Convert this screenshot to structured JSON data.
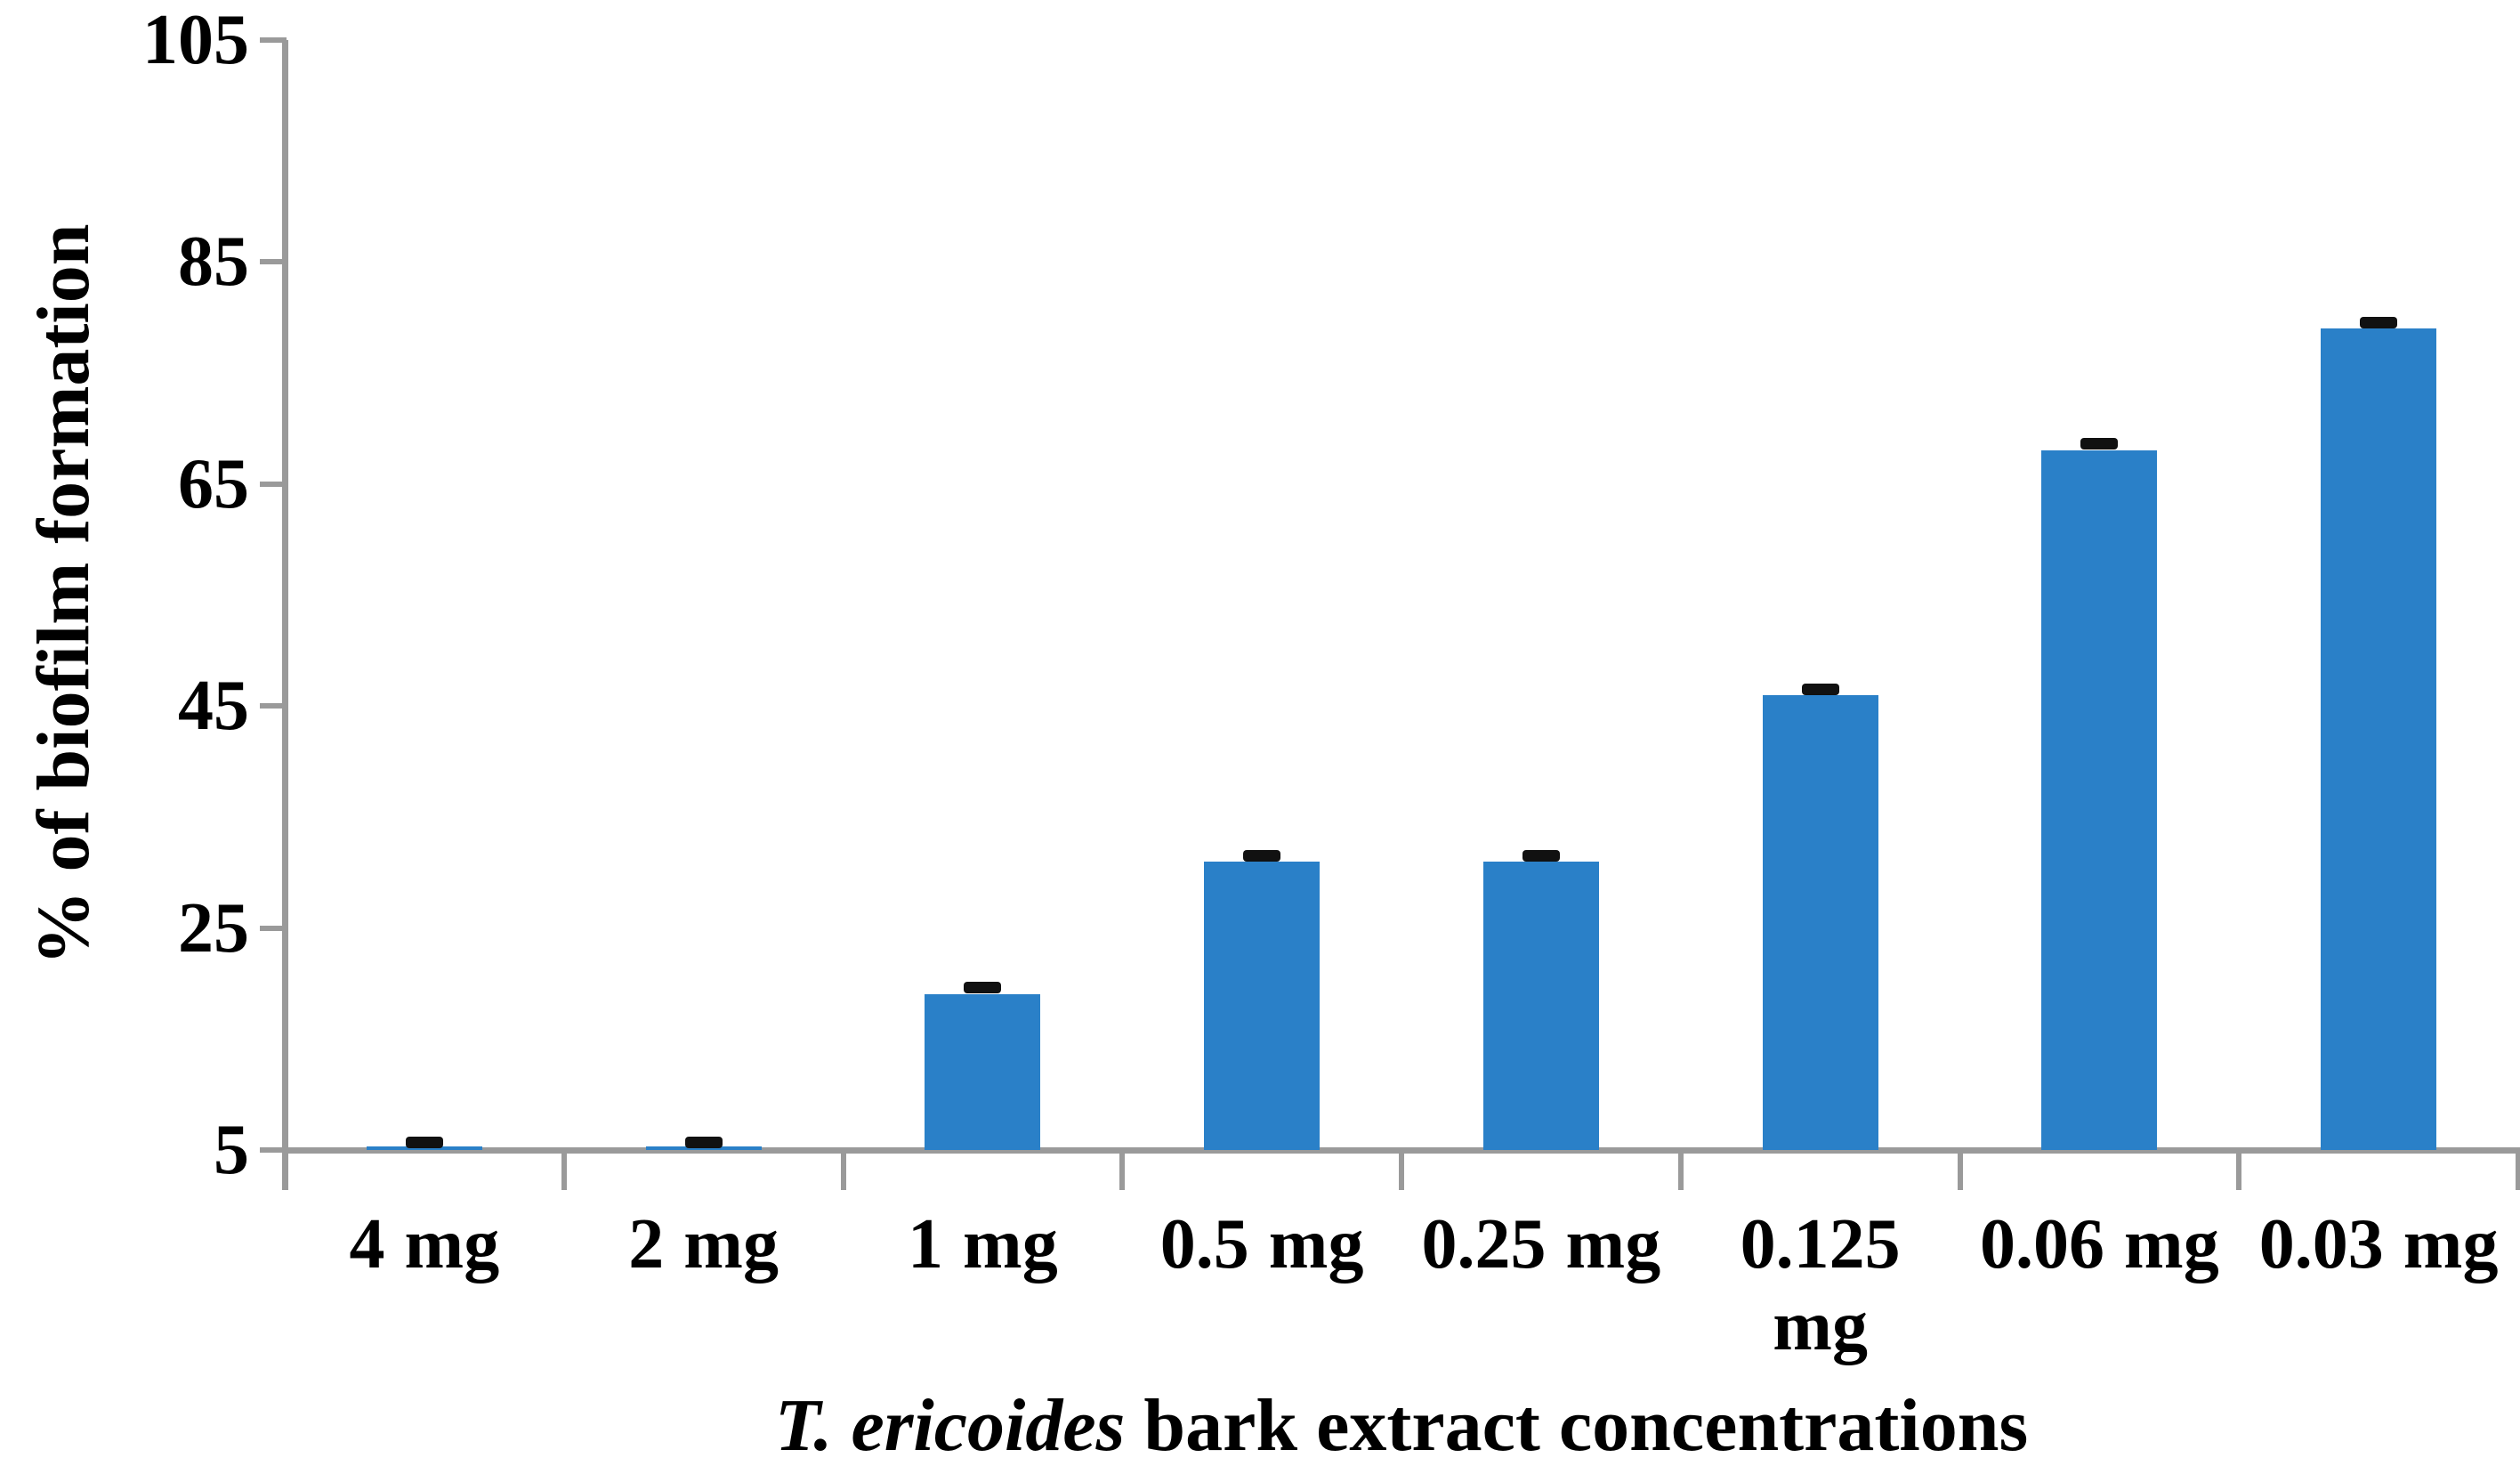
{
  "chart_data": {
    "type": "bar",
    "title": "",
    "categories": [
      "4 mg",
      "2 mg",
      "1 mg",
      "0.5 mg",
      "0.25 mg",
      "0.125 mg",
      "0.06 mg",
      "0.03 mg"
    ],
    "values": [
      5.3,
      5.3,
      19,
      31,
      31,
      46,
      68,
      79
    ],
    "errors": [
      0.4,
      0.4,
      0.6,
      0.5,
      0.5,
      0.5,
      0.6,
      0.5
    ],
    "ylabel": "% of biofilm formation",
    "xlabel_italic": "T. ericoides",
    "xlabel_rest": " bark extract concentrations",
    "yticks": [
      "105",
      "85",
      "65",
      "45",
      "25",
      "5"
    ],
    "ylim": [
      5,
      105
    ],
    "grid": "off",
    "legend": "none",
    "bar_color": "#2a80c8",
    "axis_color": "#9a9a9a",
    "error_color": "#111111"
  }
}
